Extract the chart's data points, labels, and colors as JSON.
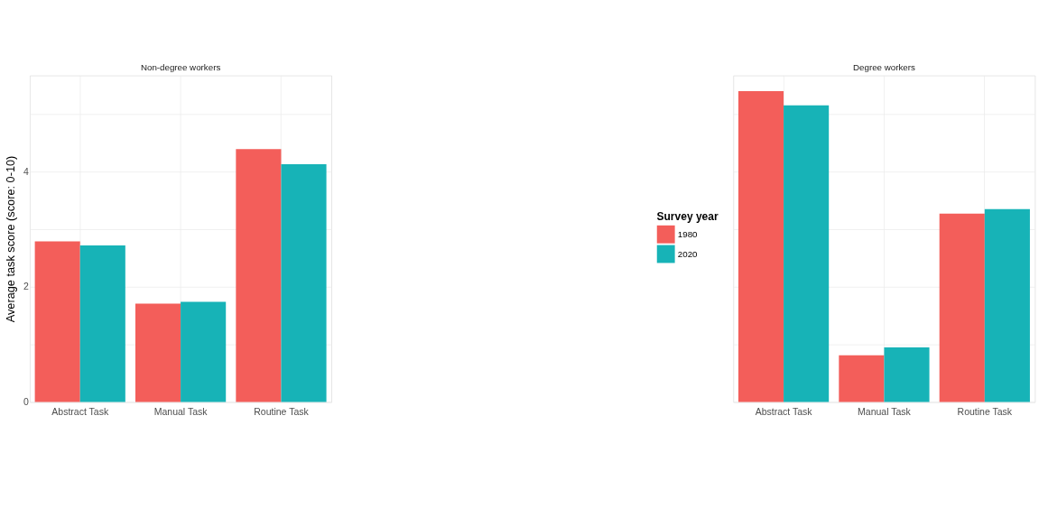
{
  "chart_data": [
    {
      "type": "bar",
      "title": "Non-degree workers",
      "ylabel": "Average task score (score: 0-10)",
      "legend_title": "Survey year",
      "legend": "right",
      "grid": true,
      "categories": [
        "Abstract Task",
        "Manual Task",
        "Routine Task"
      ],
      "series": [
        {
          "name": "1980",
          "color": "#f35e5a",
          "values": [
            2.79,
            1.71,
            4.39
          ]
        },
        {
          "name": "2020",
          "color": "#17b3b7",
          "values": [
            2.72,
            1.74,
            4.13
          ]
        }
      ],
      "ylim": [
        0,
        5.67
      ],
      "yticks": [
        0,
        {
          "value": 1,
          "label": null
        },
        2,
        {
          "value": 3,
          "label": null
        },
        4,
        {
          "value": 5,
          "label": null
        }
      ]
    },
    {
      "type": "bar",
      "title": "Degree workers",
      "grid": true,
      "tick_labels": "x",
      "categories": [
        "Abstract Task",
        "Manual Task",
        "Routine Task"
      ],
      "series": [
        {
          "name": "1980",
          "color": "#f35e5a",
          "values": [
            5.4,
            0.81,
            3.27
          ]
        },
        {
          "name": "2020",
          "color": "#17b3b7",
          "values": [
            5.15,
            0.95,
            3.35
          ]
        }
      ],
      "ylim": [
        0,
        5.67
      ],
      "yticks": [
        0,
        {
          "value": 1,
          "label": null
        },
        2,
        {
          "value": 3,
          "label": null
        },
        4,
        {
          "value": 5,
          "label": null
        }
      ]
    }
  ]
}
